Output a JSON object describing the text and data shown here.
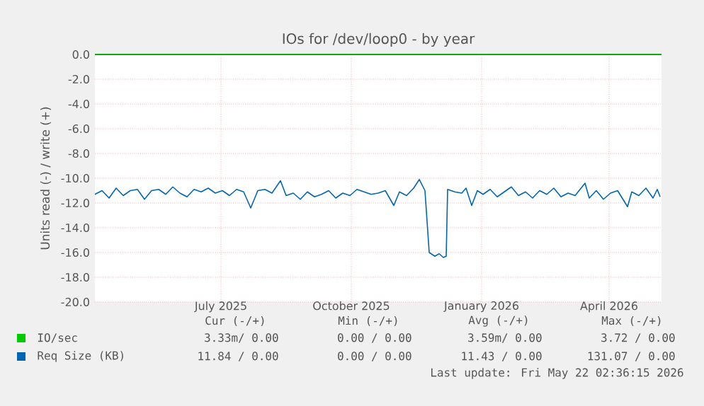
{
  "chart_data": {
    "type": "line",
    "title": "IOs for /dev/loop0 - by year",
    "ylabel": "Units read (-) / write (+)",
    "xlim": [
      "2025-04-17",
      "2026-05-22"
    ],
    "xticks": [
      {
        "value": "2025-07-15",
        "label": "July 2025"
      },
      {
        "value": "2025-10-15",
        "label": "October 2025"
      },
      {
        "value": "2026-01-15",
        "label": "January 2026"
      },
      {
        "value": "2026-04-15",
        "label": "April 2026"
      }
    ],
    "ylim": [
      -20,
      0
    ],
    "yticks": [
      {
        "value": 0,
        "label": "0.0"
      },
      {
        "value": -2,
        "label": "-2.0"
      },
      {
        "value": -4,
        "label": "-4.0"
      },
      {
        "value": -6,
        "label": "-6.0"
      },
      {
        "value": -8,
        "label": "-8.0"
      },
      {
        "value": -10,
        "label": "-10.0"
      },
      {
        "value": -12,
        "label": "-12.0"
      },
      {
        "value": -14,
        "label": "-14.0"
      },
      {
        "value": -16,
        "label": "-16.0"
      },
      {
        "value": -18,
        "label": "-18.0"
      },
      {
        "value": -20,
        "label": "-20.0"
      }
    ],
    "grid": true,
    "legend": "bottom left",
    "ref_lines": [
      {
        "axis": "y",
        "value": 0,
        "color": "#000000"
      }
    ],
    "series": [
      {
        "name": "IO/sec",
        "color": "#00cc00",
        "x": [
          "2025-04-17",
          "2026-05-22"
        ],
        "values": [
          0,
          0
        ]
      },
      {
        "name": "Req Size (KB)",
        "color": "#0066b3",
        "x": [
          "2025-04-17",
          "2025-04-22",
          "2025-04-27",
          "2025-05-02",
          "2025-05-07",
          "2025-05-12",
          "2025-05-17",
          "2025-05-22",
          "2025-05-27",
          "2025-06-01",
          "2025-06-06",
          "2025-06-11",
          "2025-06-16",
          "2025-06-21",
          "2025-06-26",
          "2025-07-01",
          "2025-07-06",
          "2025-07-11",
          "2025-07-16",
          "2025-07-21",
          "2025-07-26",
          "2025-07-31",
          "2025-08-05",
          "2025-08-10",
          "2025-08-15",
          "2025-08-20",
          "2025-08-26",
          "2025-08-30",
          "2025-09-04",
          "2025-09-09",
          "2025-09-14",
          "2025-09-19",
          "2025-09-24",
          "2025-09-29",
          "2025-10-04",
          "2025-10-09",
          "2025-10-14",
          "2025-10-19",
          "2025-10-24",
          "2025-10-29",
          "2025-11-03",
          "2025-11-08",
          "2025-11-14",
          "2025-11-18",
          "2025-11-23",
          "2025-11-28",
          "2025-12-02",
          "2025-12-06",
          "2025-12-09",
          "2025-12-13",
          "2025-12-16",
          "2025-12-19",
          "2025-12-21",
          "2025-12-22",
          "2025-12-27",
          "2026-01-01",
          "2026-01-04",
          "2026-01-08",
          "2026-01-12",
          "2026-01-16",
          "2026-01-21",
          "2026-01-26",
          "2026-01-31",
          "2026-02-05",
          "2026-02-10",
          "2026-02-15",
          "2026-02-20",
          "2026-02-25",
          "2026-03-02",
          "2026-03-07",
          "2026-03-12",
          "2026-03-17",
          "2026-03-22",
          "2026-03-29",
          "2026-04-01",
          "2026-04-06",
          "2026-04-11",
          "2026-04-16",
          "2026-04-21",
          "2026-04-28",
          "2026-05-01",
          "2026-05-06",
          "2026-05-11",
          "2026-05-16",
          "2026-05-19",
          "2026-05-21"
        ],
        "values": [
          -11.3,
          -11.0,
          -11.6,
          -10.8,
          -11.4,
          -11.0,
          -10.9,
          -11.7,
          -11.0,
          -10.9,
          -11.3,
          -10.7,
          -11.2,
          -11.5,
          -10.9,
          -11.1,
          -10.8,
          -11.2,
          -11.0,
          -11.4,
          -10.9,
          -11.1,
          -12.4,
          -11.0,
          -10.9,
          -11.2,
          -10.2,
          -11.4,
          -11.2,
          -11.7,
          -11.1,
          -11.5,
          -11.3,
          -11.0,
          -11.6,
          -11.2,
          -11.4,
          -10.9,
          -11.1,
          -11.3,
          -11.2,
          -11.0,
          -12.2,
          -11.1,
          -11.4,
          -10.8,
          -10.1,
          -11.0,
          -16.0,
          -16.3,
          -16.1,
          -16.4,
          -16.3,
          -10.9,
          -11.1,
          -11.2,
          -10.8,
          -12.2,
          -11.0,
          -11.3,
          -10.9,
          -11.5,
          -11.1,
          -10.7,
          -11.4,
          -11.1,
          -11.6,
          -11.0,
          -11.3,
          -10.8,
          -11.5,
          -11.2,
          -11.4,
          -10.4,
          -11.6,
          -11.0,
          -11.7,
          -11.2,
          -11.0,
          -12.3,
          -11.1,
          -11.4,
          -10.8,
          -11.6,
          -10.9,
          -11.5
        ]
      }
    ],
    "annotations": [
      "Cur (-/+)",
      "Min (-/+)",
      "Avg (-/+)",
      "Max (-/+)",
      "3.33m/ 0.00",
      "0.00 / 0.00",
      "3.59m/ 0.00",
      "3.72 / 0.00",
      "11.84 / 0.00",
      "0.00 / 0.00",
      "11.43 / 0.00",
      "131.07 / 0.00",
      "Last update: Fri May 22 02:36:15 2026"
    ]
  }
}
